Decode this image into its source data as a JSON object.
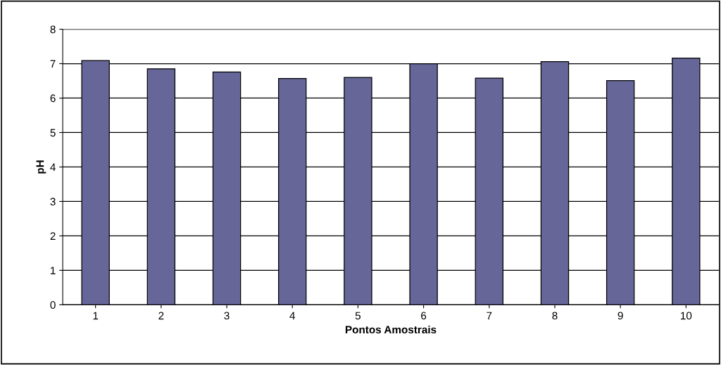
{
  "chart_data": {
    "type": "bar",
    "xlabel": "Pontos Amostrais",
    "ylabel": "pH",
    "categories": [
      "1",
      "2",
      "3",
      "4",
      "5",
      "6",
      "7",
      "8",
      "9",
      "10"
    ],
    "values": [
      7.09,
      6.85,
      6.76,
      6.57,
      6.6,
      7.0,
      6.58,
      7.06,
      6.51,
      7.16
    ],
    "color": "#666699",
    "ylim": [
      0,
      8
    ],
    "yticks": [
      0,
      1,
      2,
      3,
      4,
      5,
      6,
      7,
      8
    ],
    "grid": "y",
    "legend": false
  }
}
